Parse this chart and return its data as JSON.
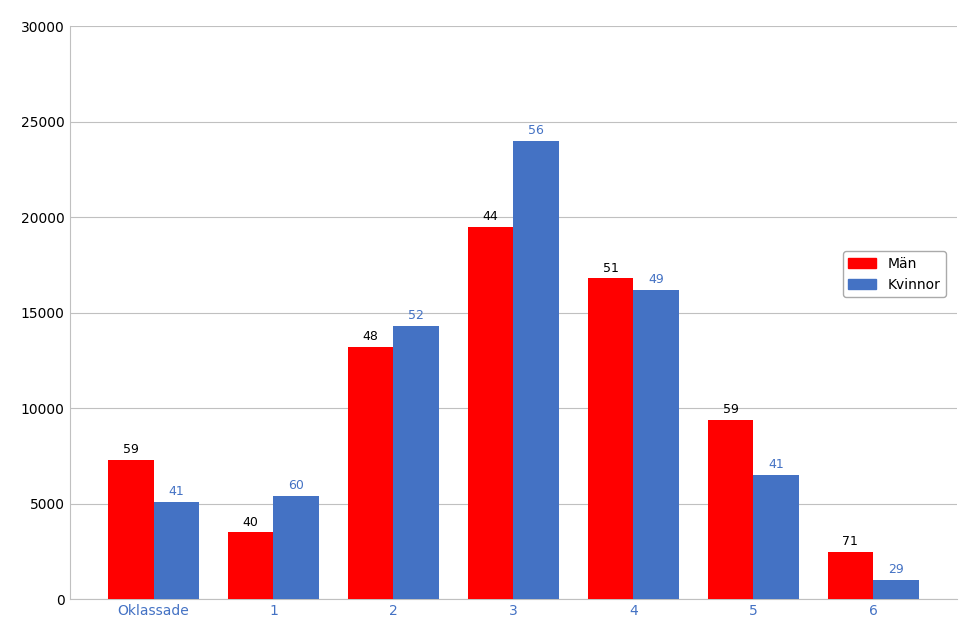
{
  "categories": [
    "Oklassade",
    "1",
    "2",
    "3",
    "4",
    "5",
    "6"
  ],
  "man_values": [
    7300,
    3500,
    13200,
    19500,
    16800,
    9400,
    2500
  ],
  "kvinnor_values": [
    5100,
    5400,
    14300,
    24000,
    16200,
    6500,
    1000
  ],
  "man_labels": [
    "59",
    "40",
    "48",
    "44",
    "51",
    "59",
    "71"
  ],
  "kvinnor_labels": [
    "41",
    "60",
    "52",
    "56",
    "49",
    "41",
    "29"
  ],
  "man_color": "#FF0000",
  "kvinnor_color": "#4472C4",
  "background_color": "#FFFFFF",
  "ylim": [
    0,
    30000
  ],
  "yticks": [
    0,
    5000,
    10000,
    15000,
    20000,
    25000,
    30000
  ],
  "legend_man": "Män",
  "legend_kvinnor": "Kvinnor",
  "grid_color": "#C0C0C0",
  "xlabel_color": "#4472C4",
  "label_fontsize": 9,
  "tick_fontsize": 10,
  "legend_fontsize": 10,
  "bar_width": 0.38,
  "man_label_color": "#000000",
  "kvinnor_label_color": "#4472C4"
}
